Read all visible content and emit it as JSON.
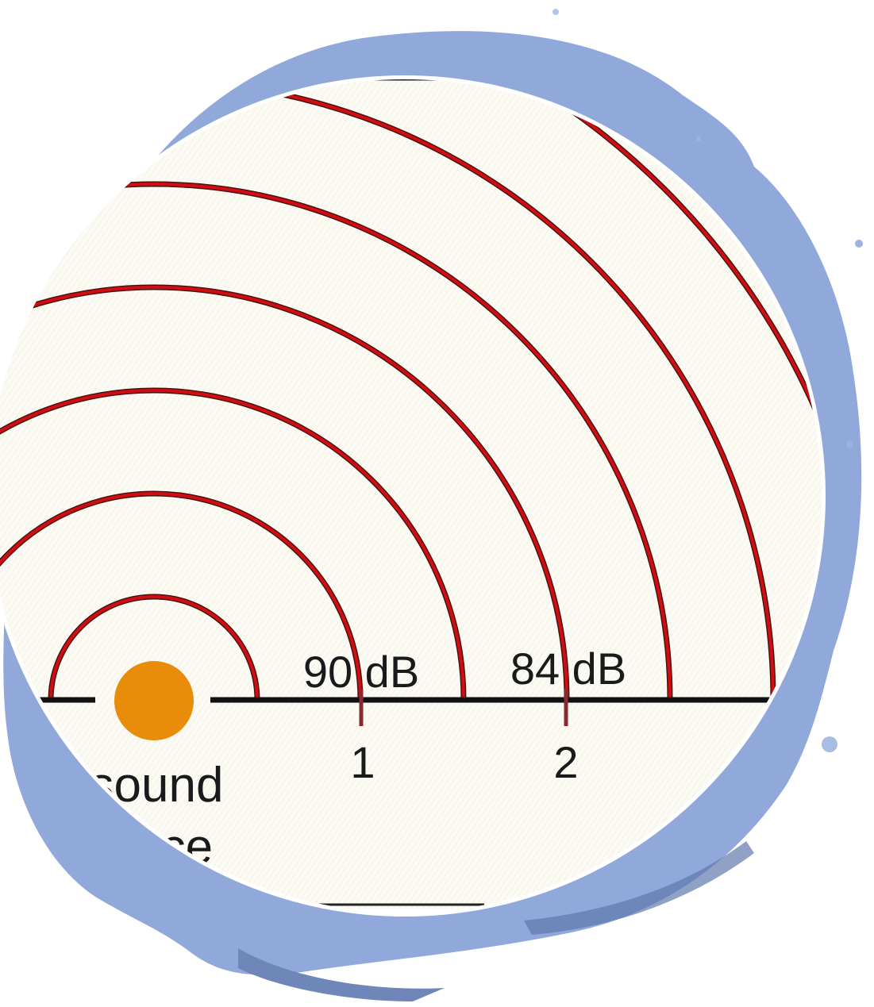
{
  "diagram": {
    "labels": {
      "level_1": "90 dB",
      "level_2": "84 dB",
      "tick_1": "1",
      "tick_2": "2",
      "source_line1": "sound",
      "source_line2": "rce"
    },
    "colors": {
      "wave": "#d10d12",
      "wave_edge": "#4a1210",
      "source": "#e88c0a",
      "axis": "#111111",
      "tick": "#8a2a30",
      "paper": "#fbfaf3",
      "splash": "#7d9bd4"
    },
    "wave_count": 7
  }
}
